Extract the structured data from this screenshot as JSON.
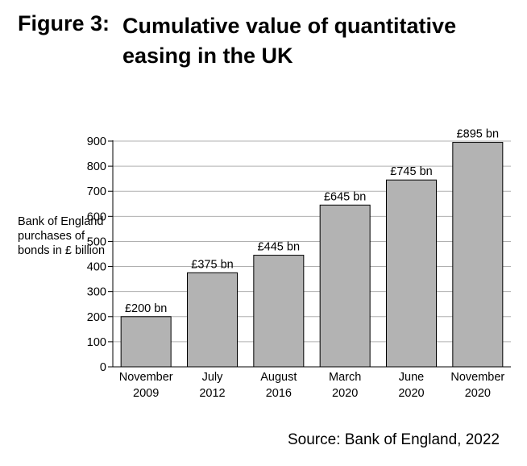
{
  "figure": {
    "label": "Figure 3:",
    "title": "Cumulative value of quantitative easing in the UK",
    "source": "Source: Bank of England, 2022"
  },
  "chart_data": {
    "type": "bar",
    "title": "Cumulative value of quantitative easing in the UK",
    "xlabel": "",
    "ylabel": "Bank of England purchases of bonds in £ billion",
    "categories": [
      [
        "November",
        "2009"
      ],
      [
        "July",
        "2012"
      ],
      [
        "August",
        "2016"
      ],
      [
        "March",
        "2020"
      ],
      [
        "June",
        "2020"
      ],
      [
        "November",
        "2020"
      ]
    ],
    "values": [
      200,
      375,
      445,
      645,
      745,
      895
    ],
    "value_labels": [
      "£200 bn",
      "£375 bn",
      "£445 bn",
      "£645 bn",
      "£745 bn",
      "£895 bn"
    ],
    "ylim": [
      0,
      900
    ],
    "yticks": [
      0,
      100,
      200,
      300,
      400,
      500,
      600,
      700,
      800,
      900
    ],
    "grid": true,
    "bar_color": "#b3b3b3"
  }
}
